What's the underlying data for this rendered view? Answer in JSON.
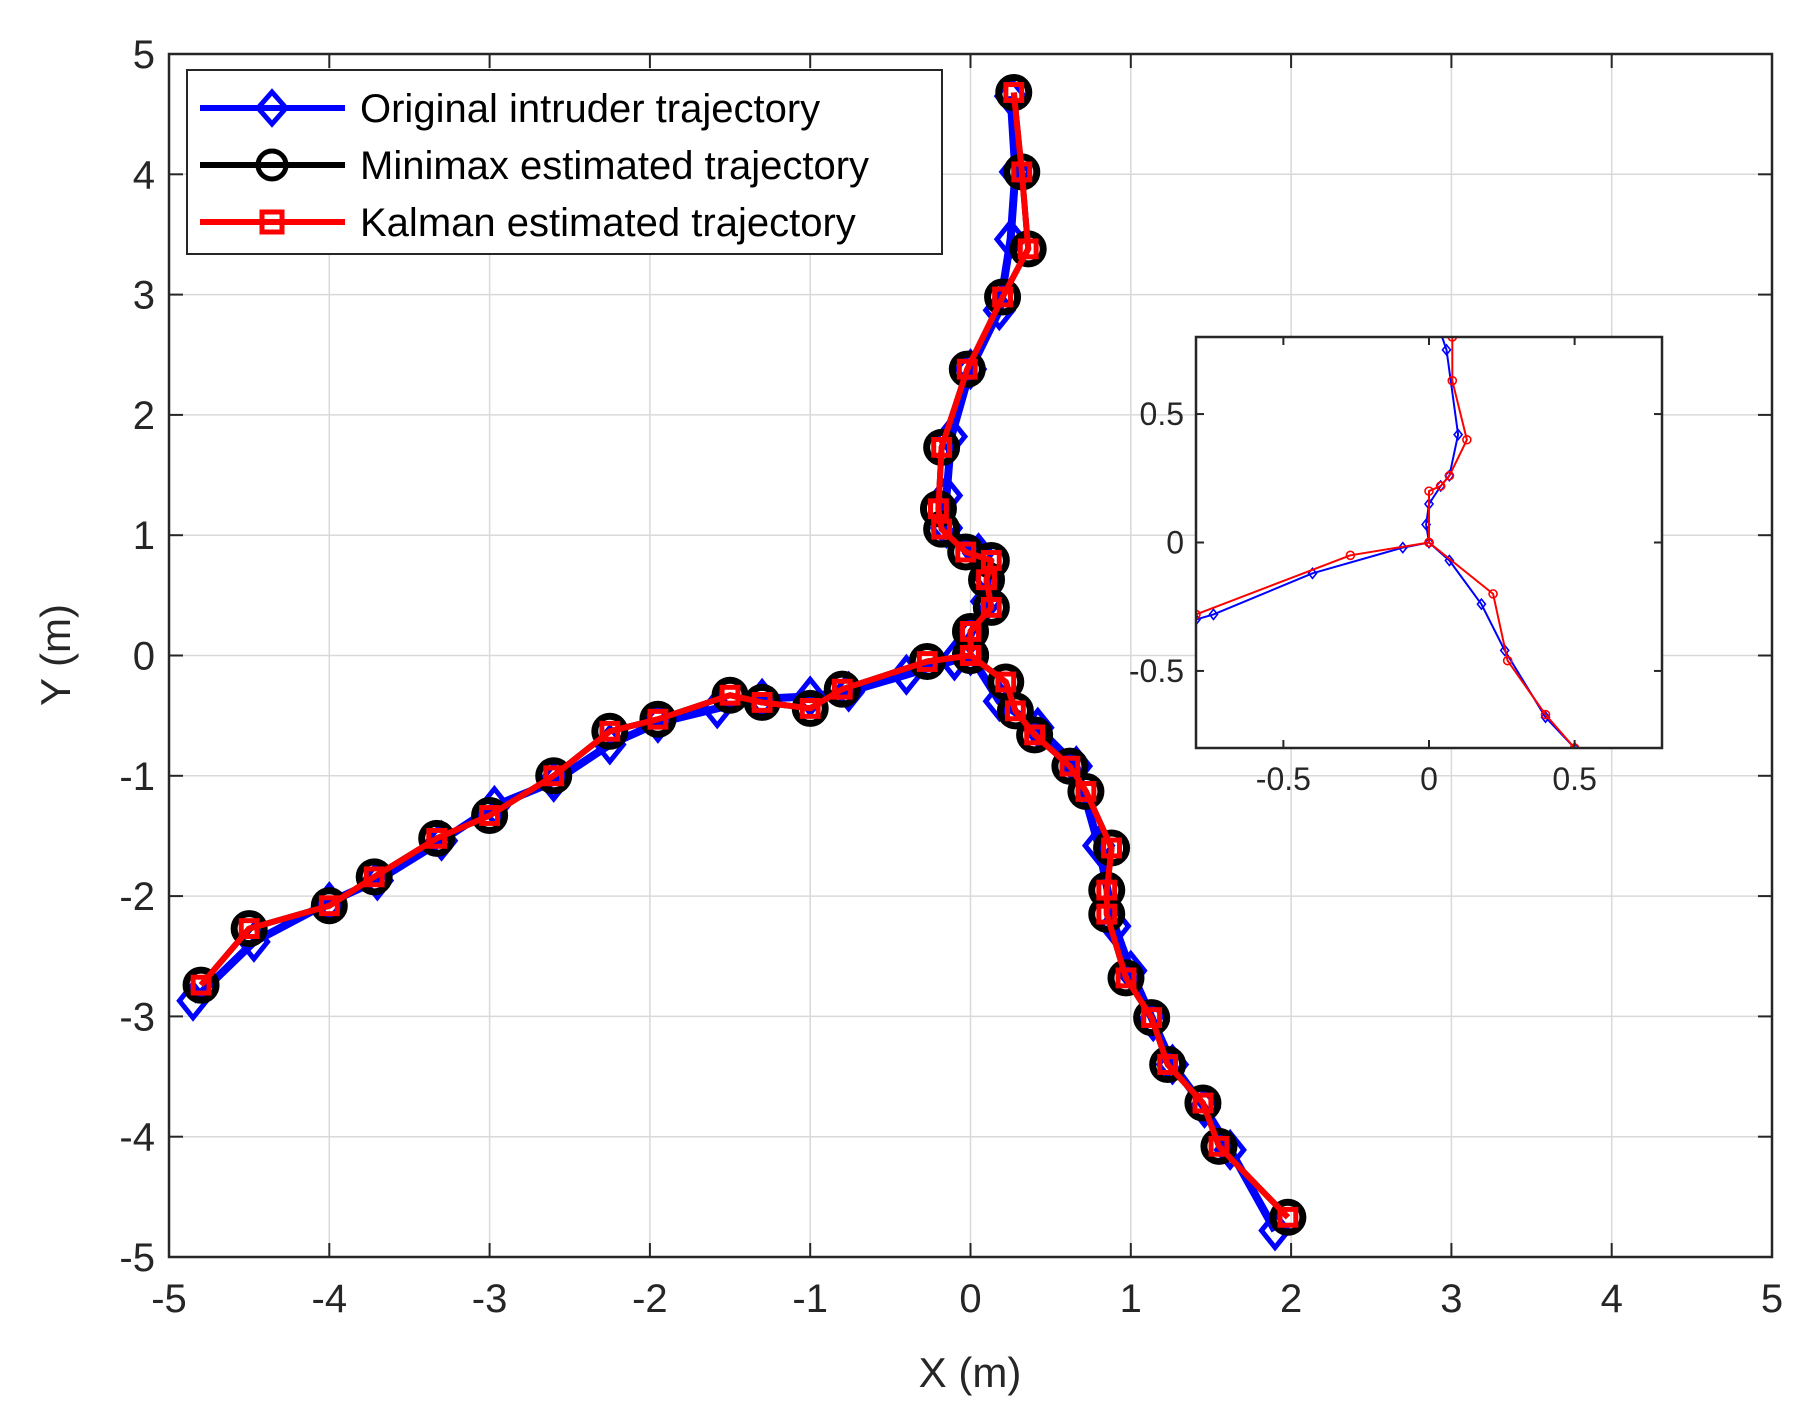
{
  "chart_data": [
    {
      "type": "line",
      "xlabel": "X (m)",
      "ylabel": "Y (m)",
      "xlim": [
        -5,
        5
      ],
      "ylim": [
        -5,
        5
      ],
      "xticks": [
        -5,
        -4,
        -3,
        -2,
        -1,
        0,
        1,
        2,
        3,
        4,
        5
      ],
      "yticks": [
        -5,
        -4,
        -3,
        -2,
        -1,
        0,
        1,
        2,
        3,
        4,
        5
      ],
      "grid": true,
      "legend_position": "top-left",
      "series": [
        {
          "name": "Original intruder trajectory",
          "color": "#0000ff",
          "marker": "diamond",
          "paths": [
            [
              [
                0.25,
                4.65
              ],
              [
                0.28,
                4.02
              ],
              [
                0.25,
                3.46
              ],
              [
                0.18,
                2.87
              ],
              [
                0.0,
                2.38
              ],
              [
                -0.12,
                1.82
              ],
              [
                -0.15,
                1.33
              ],
              [
                -0.15,
                1.06
              ],
              [
                0.05,
                0.85
              ],
              [
                0.11,
                0.66
              ],
              [
                0.1,
                0.45
              ],
              [
                0.0,
                0.17
              ],
              [
                -0.1,
                -0.04
              ]
            ],
            [
              [
                -0.1,
                -0.04
              ],
              [
                -0.4,
                -0.16
              ],
              [
                -0.76,
                -0.3
              ],
              [
                -1.0,
                -0.34
              ],
              [
                -1.3,
                -0.36
              ],
              [
                -1.58,
                -0.44
              ],
              [
                -1.95,
                -0.56
              ],
              [
                -2.25,
                -0.74
              ],
              [
                -2.6,
                -1.05
              ],
              [
                -2.97,
                -1.25
              ],
              [
                -3.3,
                -1.54
              ],
              [
                -3.7,
                -1.87
              ],
              [
                -4.0,
                -2.05
              ],
              [
                -4.47,
                -2.38
              ],
              [
                -4.85,
                -2.87
              ]
            ],
            [
              [
                0.0,
                0.0
              ],
              [
                0.18,
                -0.38
              ],
              [
                0.42,
                -0.6
              ],
              [
                0.66,
                -0.92
              ],
              [
                0.8,
                -1.58
              ],
              [
                0.9,
                -2.25
              ],
              [
                1.0,
                -2.62
              ],
              [
                1.14,
                -3.04
              ],
              [
                1.26,
                -3.4
              ],
              [
                1.46,
                -3.76
              ],
              [
                1.62,
                -4.11
              ],
              [
                1.9,
                -4.78
              ]
            ]
          ]
        },
        {
          "name": "Minimax estimated trajectory",
          "color": "#000000",
          "marker": "circle",
          "paths": [
            [
              [
                0.27,
                4.68
              ],
              [
                0.32,
                4.02
              ],
              [
                0.36,
                3.38
              ],
              [
                0.2,
                2.98
              ],
              [
                -0.02,
                2.38
              ],
              [
                -0.18,
                1.73
              ],
              [
                -0.2,
                1.22
              ],
              [
                -0.18,
                1.05
              ],
              [
                -0.03,
                0.86
              ],
              [
                0.13,
                0.79
              ],
              [
                0.1,
                0.63
              ],
              [
                0.13,
                0.4
              ],
              [
                0.0,
                0.2
              ],
              [
                0.0,
                0.0
              ]
            ],
            [
              [
                0.0,
                0.0
              ],
              [
                -0.27,
                -0.05
              ],
              [
                -0.8,
                -0.28
              ],
              [
                -1.0,
                -0.44
              ],
              [
                -1.3,
                -0.39
              ],
              [
                -1.5,
                -0.33
              ],
              [
                -1.95,
                -0.53
              ],
              [
                -2.25,
                -0.63
              ],
              [
                -2.6,
                -1.0
              ],
              [
                -3.0,
                -1.33
              ],
              [
                -3.33,
                -1.52
              ],
              [
                -3.72,
                -1.84
              ],
              [
                -4.0,
                -2.08
              ],
              [
                -4.5,
                -2.27
              ],
              [
                -4.8,
                -2.74
              ]
            ],
            [
              [
                0.0,
                0.0
              ],
              [
                0.22,
                -0.22
              ],
              [
                0.28,
                -0.46
              ],
              [
                0.4,
                -0.66
              ],
              [
                0.62,
                -0.92
              ],
              [
                0.72,
                -1.13
              ],
              [
                0.88,
                -1.6
              ],
              [
                0.85,
                -1.95
              ],
              [
                0.85,
                -2.15
              ],
              [
                0.97,
                -2.68
              ],
              [
                1.13,
                -3.01
              ],
              [
                1.23,
                -3.4
              ],
              [
                1.45,
                -3.72
              ],
              [
                1.55,
                -4.08
              ],
              [
                1.98,
                -4.67
              ]
            ]
          ]
        },
        {
          "name": "Kalman estimated trajectory",
          "color": "#ff0000",
          "marker": "square",
          "paths": [
            [
              [
                0.27,
                4.68
              ],
              [
                0.32,
                4.02
              ],
              [
                0.36,
                3.38
              ],
              [
                0.2,
                2.98
              ],
              [
                -0.02,
                2.38
              ],
              [
                -0.18,
                1.73
              ],
              [
                -0.2,
                1.22
              ],
              [
                -0.18,
                1.05
              ],
              [
                -0.03,
                0.86
              ],
              [
                0.13,
                0.79
              ],
              [
                0.1,
                0.63
              ],
              [
                0.13,
                0.4
              ],
              [
                0.0,
                0.2
              ],
              [
                0.0,
                0.0
              ]
            ],
            [
              [
                0.0,
                0.0
              ],
              [
                -0.27,
                -0.05
              ],
              [
                -0.8,
                -0.28
              ],
              [
                -1.0,
                -0.44
              ],
              [
                -1.3,
                -0.39
              ],
              [
                -1.5,
                -0.33
              ],
              [
                -1.95,
                -0.53
              ],
              [
                -2.25,
                -0.63
              ],
              [
                -2.6,
                -1.0
              ],
              [
                -3.0,
                -1.33
              ],
              [
                -3.33,
                -1.52
              ],
              [
                -3.72,
                -1.84
              ],
              [
                -4.0,
                -2.08
              ],
              [
                -4.5,
                -2.27
              ],
              [
                -4.8,
                -2.74
              ]
            ],
            [
              [
                0.0,
                0.0
              ],
              [
                0.22,
                -0.22
              ],
              [
                0.28,
                -0.46
              ],
              [
                0.4,
                -0.66
              ],
              [
                0.62,
                -0.92
              ],
              [
                0.72,
                -1.13
              ],
              [
                0.88,
                -1.6
              ],
              [
                0.85,
                -1.95
              ],
              [
                0.85,
                -2.15
              ],
              [
                0.97,
                -2.68
              ],
              [
                1.13,
                -3.01
              ],
              [
                1.23,
                -3.4
              ],
              [
                1.45,
                -3.72
              ],
              [
                1.55,
                -4.08
              ],
              [
                1.98,
                -4.67
              ]
            ]
          ]
        }
      ]
    },
    {
      "type": "line",
      "title": "",
      "xlim": [
        -0.8,
        0.8
      ],
      "ylim": [
        -0.8,
        0.8
      ],
      "xticks": [
        -0.5,
        0,
        0.5
      ],
      "yticks": [
        -0.5,
        0,
        0.5
      ],
      "xtick_labels": [
        "-0.5",
        "0",
        "0.5"
      ],
      "ytick_labels": [
        "-0.5",
        "0",
        "0.5"
      ],
      "grid": false,
      "series": [
        {
          "name": "Original intruder trajectory",
          "color": "#0000ff",
          "marker": "diamond",
          "paths": [
            [
              [
                0.03,
                0.85
              ],
              [
                0.06,
                0.75
              ],
              [
                0.1,
                0.42
              ],
              [
                0.07,
                0.26
              ],
              [
                0.04,
                0.22
              ],
              [
                0.0,
                0.15
              ],
              [
                -0.01,
                0.07
              ],
              [
                0.0,
                0.0
              ]
            ],
            [
              [
                0.0,
                0.0
              ],
              [
                -0.09,
                -0.02
              ],
              [
                -0.4,
                -0.12
              ],
              [
                -0.74,
                -0.28
              ],
              [
                -0.8,
                -0.3
              ]
            ],
            [
              [
                0.0,
                0.0
              ],
              [
                0.07,
                -0.07
              ],
              [
                0.18,
                -0.24
              ],
              [
                0.26,
                -0.42
              ],
              [
                0.4,
                -0.68
              ],
              [
                0.5,
                -0.8
              ]
            ]
          ]
        },
        {
          "name": "Kalman estimated trajectory",
          "color": "#ff0000",
          "marker": "circle",
          "paths": [
            [
              [
                0.08,
                0.8
              ],
              [
                0.08,
                0.63
              ],
              [
                0.13,
                0.4
              ],
              [
                0.07,
                0.26
              ],
              [
                0.04,
                0.22
              ],
              [
                0.0,
                0.2
              ],
              [
                0.0,
                0.0
              ]
            ],
            [
              [
                0.0,
                0.0
              ],
              [
                -0.27,
                -0.05
              ],
              [
                -0.8,
                -0.28
              ]
            ],
            [
              [
                0.0,
                0.0
              ],
              [
                0.22,
                -0.2
              ],
              [
                0.27,
                -0.46
              ],
              [
                0.4,
                -0.67
              ],
              [
                0.5,
                -0.8
              ]
            ]
          ]
        }
      ]
    }
  ]
}
